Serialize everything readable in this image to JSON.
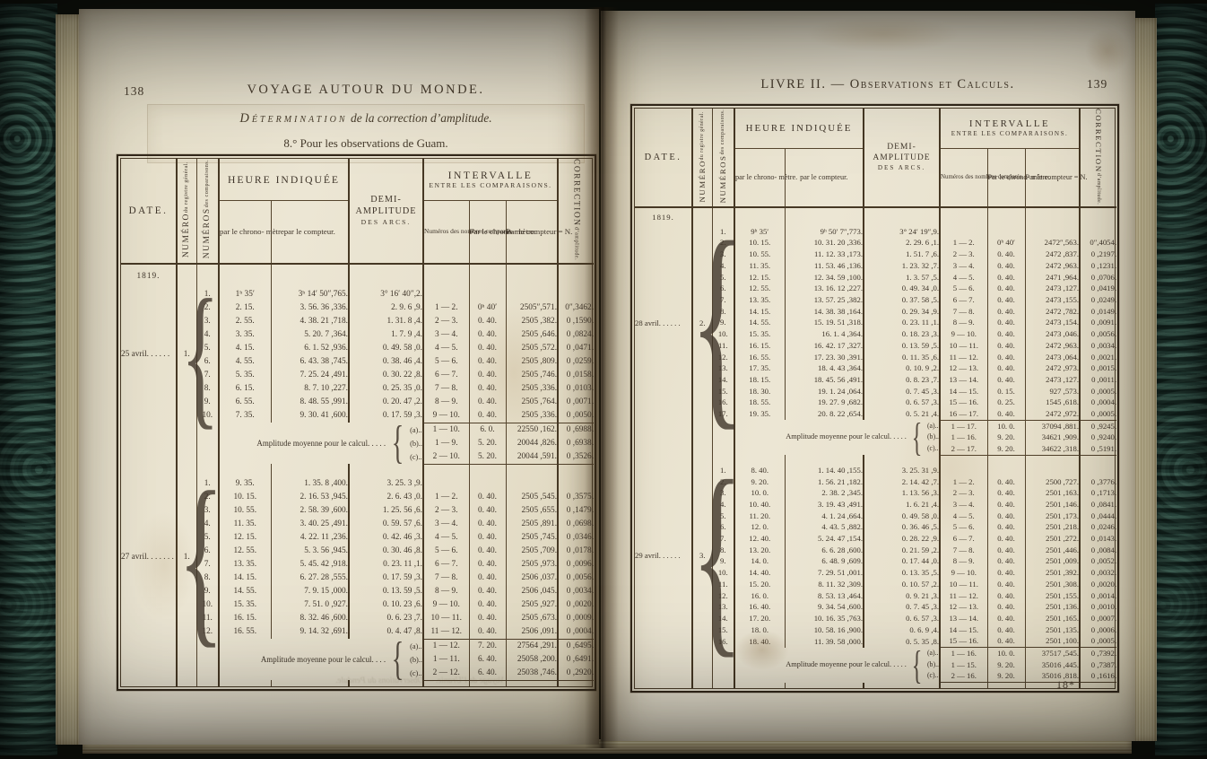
{
  "palette": {
    "paper": "#eae3cf",
    "ink": "#3f352a",
    "rule": "#463824",
    "background": "#12150e",
    "marble_board": "#2b4a42",
    "page_edge": "#d5c99f"
  },
  "header": {
    "date": "DATE.",
    "numero_main": "NUMÉRO",
    "numero_sub": "du registre général.",
    "numeros_main": "NUMÉROS",
    "numeros_sub": "des comparaisons.",
    "heure_indiquee": "HEURE INDIQUÉE",
    "par_chronometre": "par\nle chrono-\nmètre.",
    "par_compteur": "par\nle compteur.",
    "demi_line1": "DEMI-",
    "demi_line2": "AMPLITUDE",
    "demi_line3": "DES ARCS.",
    "intervalle_line1": "INTERVALLE",
    "intervalle_line2": "ENTRE LES COMPARAISONS.",
    "numeros_compares": "Numéros\ndes\nnombres\ncomparés.",
    "int_par_chronometre": "Par\nle chrono-\nmètre.",
    "int_par_compteur": "Par\nle compteur\n= N.",
    "correction_main": "CORRECTION",
    "correction_sub": "d’amplitude."
  },
  "left_page": {
    "page_number": "138",
    "running_title": "VOYAGE AUTOUR DU MONDE.",
    "caption_line1_lead": "Détermination",
    "caption_line1_rest": " de la correction d’amplitude.",
    "caption_line2": "8.° Pour les observations de Guam.",
    "show_through_text": "Voyage de l’Uranie. — Observations du Pendule.",
    "table": {
      "year": "1819.",
      "blocks": [
        {
          "date_label": "25 avril. . . . . .",
          "numero": "1.",
          "rows": [
            [
              "1.",
              "1ʰ 35′",
              "3ʰ 14′ 50″,765.",
              "3° 16′ 40″,2.",
              "",
              "",
              "",
              ""
            ],
            [
              "2.",
              "2. 15.",
              "3. 56. 36 ,336.",
              "2. 9. 6 ,9.",
              "1 — 2.",
              "0ʰ 40′",
              "2505″,571.",
              "0″,3462."
            ],
            [
              "3.",
              "2. 55.",
              "4. 38. 21 ,718.",
              "1. 31. 8 ,4.",
              "2 — 3.",
              "0. 40.",
              "2505 ,382.",
              "0 ,1590."
            ],
            [
              "4.",
              "3. 35.",
              "5. 20. 7 ,364.",
              "1. 7. 9 ,4.",
              "3 — 4.",
              "0. 40.",
              "2505 ,646.",
              "0 ,0824."
            ],
            [
              "5.",
              "4. 15.",
              "6. 1. 52 ,936.",
              "0. 49. 58 ,0.",
              "4 — 5.",
              "0. 40.",
              "2505 ,572.",
              "0 ,0471."
            ],
            [
              "6.",
              "4. 55.",
              "6. 43. 38 ,745.",
              "0. 38. 46 ,4.",
              "5 — 6.",
              "0. 40.",
              "2505 ,809.",
              "0 ,0259."
            ],
            [
              "7.",
              "5. 35.",
              "7. 25. 24 ,491.",
              "0. 30. 22 ,8.",
              "6 — 7.",
              "0. 40.",
              "2505 ,746.",
              "0 ,0158."
            ],
            [
              "8.",
              "6. 15.",
              "8. 7. 10 ,227.",
              "0. 25. 35 ,0.",
              "7 — 8.",
              "0. 40.",
              "2505 ,336.",
              "0 ,0103."
            ],
            [
              "9.",
              "6. 55.",
              "8. 48. 55 ,991.",
              "0. 20. 47 ,2.",
              "8 — 9.",
              "0. 40.",
              "2505 ,764.",
              "0 ,0071."
            ],
            [
              "10.",
              "7. 35.",
              "9. 30. 41 ,600.",
              "0. 17. 59 ,3.",
              "9 — 10.",
              "0. 40.",
              "2505 ,336.",
              "0 ,0050."
            ]
          ],
          "amplitude_label": "Amplitude moyenne pour le calcul. . . . .",
          "amplitude_entries": [
            [
              "(a)..",
              "1 — 10.",
              "6. 0.",
              "22550 ,162.",
              "0 ,6988."
            ],
            [
              "(b)..",
              "1 — 9.",
              "5. 20.",
              "20044 ,826.",
              "0 ,6938."
            ],
            [
              "(c)..",
              "2 — 10.",
              "5. 20.",
              "20044 ,591.",
              "0 ,3526."
            ]
          ]
        },
        {
          "date_label": "27 avril. . . . . . .",
          "numero": "1.",
          "rows": [
            [
              "1.",
              "9. 35.",
              "1. 35. 8 ,400.",
              "3. 25. 3 ,9.",
              "",
              "",
              "",
              ""
            ],
            [
              "2.",
              "10. 15.",
              "2. 16. 53 ,945.",
              "2. 6. 43 ,0.",
              "1 — 2.",
              "0. 40.",
              "2505 ,545.",
              "0 ,3575."
            ],
            [
              "3.",
              "10. 55.",
              "2. 58. 39 ,600.",
              "1. 25. 56 ,6.",
              "2 — 3.",
              "0. 40.",
              "2505 ,655.",
              "0 ,1479."
            ],
            [
              "4.",
              "11. 35.",
              "3. 40. 25 ,491.",
              "0. 59. 57 ,6.",
              "3 — 4.",
              "0. 40.",
              "2505 ,891.",
              "0 ,0698."
            ],
            [
              "5.",
              "12. 15.",
              "4. 22. 11 ,236.",
              "0. 42. 46 ,3.",
              "4 — 5.",
              "0. 40.",
              "2505 ,745.",
              "0 ,0346."
            ],
            [
              "6.",
              "12. 55.",
              "5. 3. 56 ,945.",
              "0. 30. 46 ,8.",
              "5 — 6.",
              "0. 40.",
              "2505 ,709.",
              "0 ,0178."
            ],
            [
              "7.",
              "13. 35.",
              "5. 45. 42 ,918.",
              "0. 23. 11 ,1.",
              "6 — 7.",
              "0. 40.",
              "2505 ,973.",
              "0 ,0096."
            ],
            [
              "8.",
              "14. 15.",
              "6. 27. 28 ,555.",
              "0. 17. 59 ,3.",
              "7 — 8.",
              "0. 40.",
              "2506 ,037.",
              "0 ,0056."
            ],
            [
              "9.",
              "14. 55.",
              "7. 9. 15 ,000.",
              "0. 13. 59 ,5.",
              "8 — 9.",
              "0. 40.",
              "2506 ,045.",
              "0 ,0034."
            ],
            [
              "10.",
              "15. 35.",
              "7. 51. 0 ,927.",
              "0. 10. 23 ,6.",
              "9 — 10.",
              "0. 40.",
              "2505 ,927.",
              "0 ,0020."
            ],
            [
              "11.",
              "16. 15.",
              "8. 32. 46 ,600.",
              "0. 6. 23 ,7.",
              "10 — 11.",
              "0. 40.",
              "2505 ,673.",
              "0 ,0009."
            ],
            [
              "12.",
              "16. 55.",
              "9. 14. 32 ,691.",
              "0. 4. 47 ,8.",
              "11 — 12.",
              "0. 40.",
              "2506 ,091.",
              "0 ,0004."
            ]
          ],
          "amplitude_label": "Amplitude moyenne pour le calcul. . . .",
          "amplitude_entries": [
            [
              "(a)..",
              "1 — 12.",
              "7. 20.",
              "27564 ,291.",
              "0 ,6495."
            ],
            [
              "(b)..",
              "1 — 11.",
              "6. 40.",
              "25058 ,200.",
              "0 ,6491."
            ],
            [
              "(c)..",
              "2 — 12.",
              "6. 40.",
              "25038 ,746.",
              "0 ,2920."
            ]
          ]
        }
      ]
    }
  },
  "right_page": {
    "page_number": "139",
    "running_title_lead": "LIVRE II. — ",
    "running_title_rest": "Observations et Calculs.",
    "signature_mark": "18*",
    "table": {
      "year": "1819.",
      "blocks": [
        {
          "date_label": "28 avril. . . . . .",
          "numero": "2.",
          "rows": [
            [
              "1.",
              "9ʰ 35′",
              "9ʰ 50′ 7″,773.",
              "3° 24′ 19″,9.",
              "",
              "",
              "",
              ""
            ],
            [
              "2.",
              "10. 15.",
              "10. 31. 20 ,336.",
              "2. 29. 6 ,1.",
              "1 — 2.",
              "0ʰ 40′",
              "2472″,563.",
              "0″,4054."
            ],
            [
              "3.",
              "10. 55.",
              "11. 12. 33 ,173.",
              "1. 51. 7 ,6.",
              "2 — 3.",
              "0. 40.",
              "2472 ,837.",
              "0 ,2197."
            ],
            [
              "4.",
              "11. 35.",
              "11. 53. 46 ,136.",
              "1. 23. 32 ,7.",
              "3 — 4.",
              "0. 40.",
              "2472 ,963.",
              "0 ,1231."
            ],
            [
              "5.",
              "12. 15.",
              "12. 34. 59 ,100.",
              "1. 3. 57 ,5.",
              "4 — 5.",
              "0. 40.",
              "2471 ,964.",
              "0 ,0706."
            ],
            [
              "6.",
              "12. 55.",
              "13. 16. 12 ,227.",
              "0. 49. 34 ,0.",
              "5 — 6.",
              "0. 40.",
              "2473 ,127.",
              "0 ,0419."
            ],
            [
              "7.",
              "13. 35.",
              "13. 57. 25 ,382.",
              "0. 37. 58 ,5.",
              "6 — 7.",
              "0. 40.",
              "2473 ,155.",
              "0 ,0249."
            ],
            [
              "8.",
              "14. 15.",
              "14. 38. 38 ,164.",
              "0. 29. 34 ,9.",
              "7 — 8.",
              "0. 40.",
              "2472 ,782.",
              "0 ,0149."
            ],
            [
              "9.",
              "14. 55.",
              "15. 19. 51 ,318.",
              "0. 23. 11 ,1.",
              "8 — 9.",
              "0. 40.",
              "2473 ,154.",
              "0 ,0091."
            ],
            [
              "10.",
              "15. 35.",
              "16. 1. 4 ,364.",
              "0. 18. 23 ,3.",
              "9 — 10.",
              "0. 40.",
              "2473 ,046.",
              "0 ,0056."
            ],
            [
              "11.",
              "16. 15.",
              "16. 42. 17 ,327.",
              "0. 13. 59 ,5.",
              "10 — 11.",
              "0. 40.",
              "2472 ,963.",
              "0 ,0034."
            ],
            [
              "12.",
              "16. 55.",
              "17. 23. 30 ,391.",
              "0. 11. 35 ,6.",
              "11 — 12.",
              "0. 40.",
              "2473 ,064.",
              "0 ,0021."
            ],
            [
              "13.",
              "17. 35.",
              "18. 4. 43 ,364.",
              "0. 10. 9 ,2.",
              "12 — 13.",
              "0. 40.",
              "2472 ,973.",
              "0 ,0015."
            ],
            [
              "14.",
              "18. 15.",
              "18. 45. 56 ,491.",
              "0. 8. 23 ,7.",
              "13 — 14.",
              "0. 40.",
              "2473 ,127.",
              "0 ,0011."
            ],
            [
              "15.",
              "18. 30.",
              "19. 1. 24 ,064.",
              "0. 7. 45 ,3.",
              "14 — 15.",
              "0. 15.",
              "927 ,573.",
              "0 ,0005."
            ],
            [
              "16.",
              "18. 55.",
              "19. 27. 9 ,682.",
              "0. 6. 57 ,3.",
              "15 — 16.",
              "0. 25.",
              "1545 ,618.",
              "0 ,0004."
            ],
            [
              "17.",
              "19. 35.",
              "20. 8. 22 ,654.",
              "0. 5. 21 ,4.",
              "16 — 17.",
              "0. 40.",
              "2472 ,972.",
              "0 ,0005."
            ]
          ],
          "amplitude_label": "Amplitude moyenne pour le calcul. . . . .",
          "amplitude_entries": [
            [
              "(a)..",
              "1 — 17.",
              "10. 0.",
              "37094 ,881.",
              "0 ,9245."
            ],
            [
              "(b)..",
              "1 — 16.",
              "9. 20.",
              "34621 ,909.",
              "0 ,9240."
            ],
            [
              "(c)..",
              "2 — 17.",
              "9. 20.",
              "34622 ,318.",
              "0 ,5191."
            ]
          ]
        },
        {
          "date_label": "29 avril. . . . . .",
          "numero": "3.",
          "rows": [
            [
              "1.",
              "8. 40.",
              "1. 14. 40 ,155.",
              "3. 25. 31 ,9.",
              "",
              "",
              "",
              ""
            ],
            [
              "2.",
              "9. 20.",
              "1. 56. 21 ,182.",
              "2. 14. 42 ,7.",
              "1 — 2.",
              "0. 40.",
              "2500 ,727.",
              "0 ,3776."
            ],
            [
              "3.",
              "10. 0.",
              "2. 38. 2 ,345.",
              "1. 13. 56 ,3.",
              "2 — 3.",
              "0. 40.",
              "2501 ,163.",
              "0 ,1713."
            ],
            [
              "4.",
              "10. 40.",
              "3. 19. 43 ,491.",
              "1. 6. 21 ,4.",
              "3 — 4.",
              "0. 40.",
              "2501 ,146.",
              "0 ,0841."
            ],
            [
              "5.",
              "11. 20.",
              "4. 1. 24 ,664.",
              "0. 49. 58 ,0.",
              "4 — 5.",
              "0. 40.",
              "2501 ,173.",
              "0 ,0444."
            ],
            [
              "6.",
              "12. 0.",
              "4. 43. 5 ,882.",
              "0. 36. 46 ,5.",
              "5 — 6.",
              "0. 40.",
              "2501 ,218.",
              "0 ,0246."
            ],
            [
              "7.",
              "12. 40.",
              "5. 24. 47 ,154.",
              "0. 28. 22 ,9.",
              "6 — 7.",
              "0. 40.",
              "2501 ,272.",
              "0 ,0143."
            ],
            [
              "8.",
              "13. 20.",
              "6. 6. 28 ,600.",
              "0. 21. 59 ,2.",
              "7 — 8.",
              "0. 40.",
              "2501 ,446.",
              "0 ,0084."
            ],
            [
              "9.",
              "14. 0.",
              "6. 48. 9 ,609.",
              "0. 17. 44 ,0.",
              "8 — 9.",
              "0. 40.",
              "2501 ,009.",
              "0 ,0052."
            ],
            [
              "10.",
              "14. 40.",
              "7. 29. 51 ,001.",
              "0. 13. 35 ,5.",
              "9 — 10.",
              "0. 40.",
              "2501 ,392.",
              "0 ,0032."
            ],
            [
              "11.",
              "15. 20.",
              "8. 11. 32 ,309.",
              "0. 10. 57 ,2.",
              "10 — 11.",
              "0. 40.",
              "2501 ,308.",
              "0 ,0020."
            ],
            [
              "12.",
              "16. 0.",
              "8. 53. 13 ,464.",
              "0. 9. 21 ,3.",
              "11 — 12.",
              "0. 40.",
              "2501 ,155.",
              "0 ,0014."
            ],
            [
              "13.",
              "16. 40.",
              "9. 34. 54 ,600.",
              "0. 7. 45 ,3.",
              "12 — 13.",
              "0. 40.",
              "2501 ,136.",
              "0 ,0010."
            ],
            [
              "14.",
              "17. 20.",
              "10. 16. 35 ,763.",
              "0. 6. 57 ,3.",
              "13 — 14.",
              "0. 40.",
              "2501 ,165.",
              "0 ,0007."
            ],
            [
              "15.",
              "18. 0.",
              "10. 58. 16 ,900.",
              "0. 6. 9 ,4.",
              "14 — 15.",
              "0. 40.",
              "2501 ,135.",
              "0 ,0006."
            ],
            [
              "16.",
              "18. 40.",
              "11. 39. 58 ,000.",
              "0. 5. 35 ,8.",
              "15 — 16.",
              "0. 40.",
              "2501 ,100.",
              "0 ,0005."
            ]
          ],
          "amplitude_label": "Amplitude moyenne pour le calcul. . . . .",
          "amplitude_entries": [
            [
              "(a)..",
              "1 — 16.",
              "10. 0.",
              "37517 ,545.",
              "0 ,7392."
            ],
            [
              "(b)..",
              "1 — 15.",
              "9. 20.",
              "35016 ,445.",
              "0 ,7387."
            ],
            [
              "(c)..",
              "2 — 16.",
              "9. 20.",
              "35016 ,818.",
              "0 ,1616."
            ]
          ]
        }
      ]
    }
  }
}
